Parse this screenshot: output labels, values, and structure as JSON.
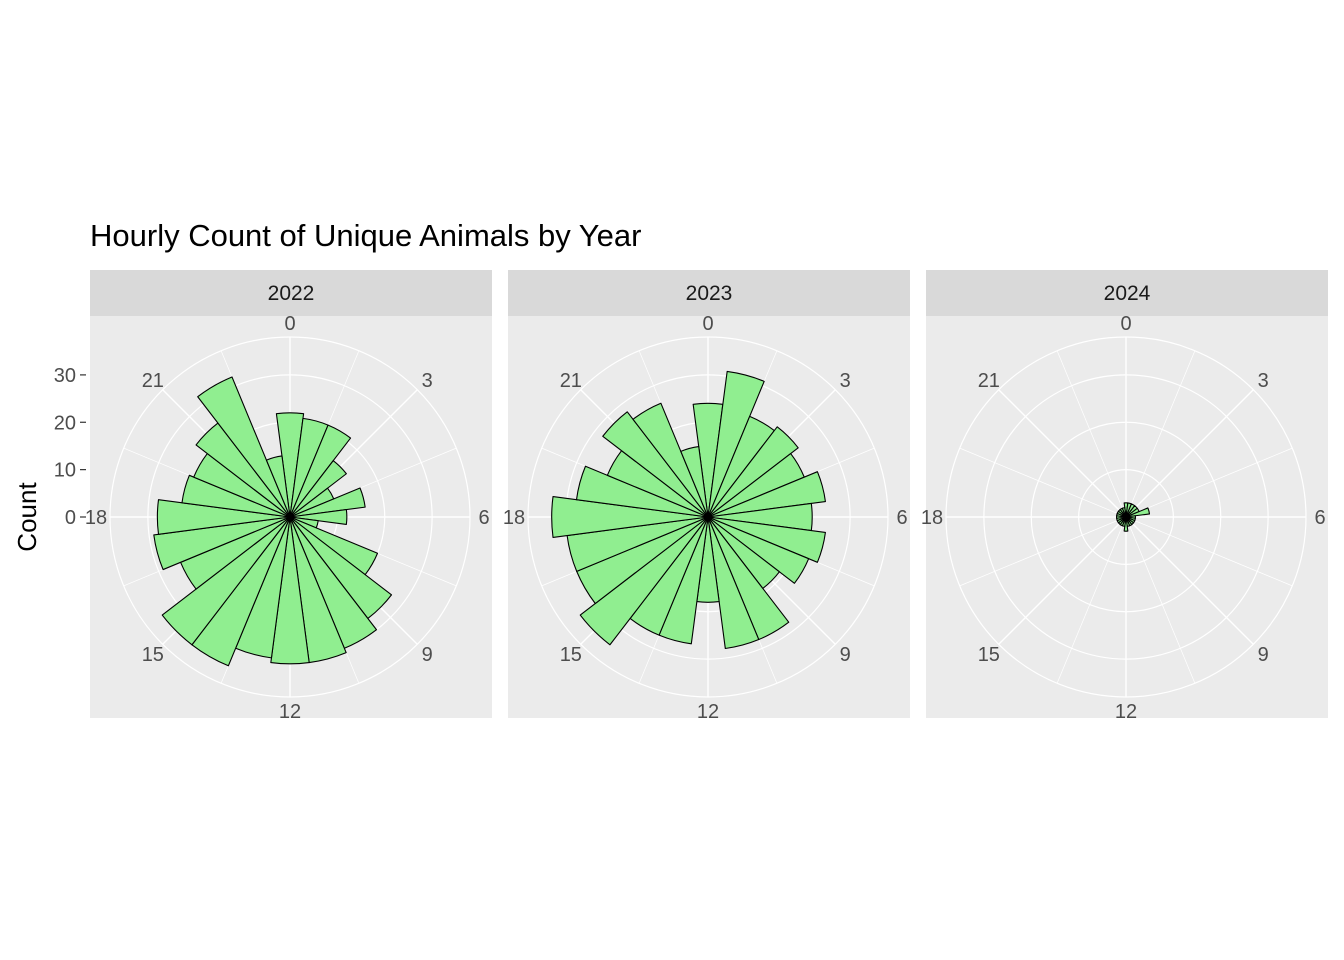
{
  "chart_data": {
    "type": "bar",
    "coord": "polar",
    "title": "Hourly Count of Unique Animals by Year",
    "xlabel": "",
    "ylabel": "Count",
    "y_ticks": [
      "0",
      "10",
      "20",
      "30"
    ],
    "x_tick_labels": [
      "0",
      "3",
      "6",
      "9",
      "12",
      "15",
      "18",
      "21"
    ],
    "x_tick_hours": [
      0,
      3,
      6,
      9,
      12,
      15,
      18,
      21
    ],
    "ylim": [
      0,
      38
    ],
    "bar_fill": "#90EE90",
    "bar_stroke": "#000000",
    "panel_background": "#EBEBEB",
    "strip_background": "#D9D9D9",
    "grid_color": "#FFFFFF",
    "panels": [
      {
        "label": "2022",
        "hours": [
          0,
          1,
          2,
          3,
          4,
          5,
          6,
          7,
          8,
          9,
          10,
          11,
          12,
          13,
          14,
          15,
          16,
          17,
          18,
          19,
          20,
          21,
          22,
          23
        ],
        "values": [
          22,
          21,
          21,
          15,
          10,
          16,
          12,
          6,
          20,
          27,
          30,
          31,
          31,
          30,
          34,
          34,
          25,
          29,
          28,
          23,
          22,
          25,
          32,
          13
        ]
      },
      {
        "label": "2023",
        "hours": [
          0,
          1,
          2,
          3,
          4,
          5,
          6,
          7,
          8,
          9,
          10,
          11,
          12,
          13,
          14,
          15,
          16,
          17,
          18,
          19,
          20,
          21,
          22,
          23
        ],
        "values": [
          24,
          31,
          23,
          24,
          22,
          25,
          22,
          25,
          23,
          19,
          28,
          28,
          18,
          27,
          27,
          34,
          30,
          30,
          33,
          28,
          23,
          28,
          26,
          15
        ]
      },
      {
        "label": "2024",
        "hours": [
          0,
          1,
          2,
          3,
          4,
          5,
          6,
          7,
          8,
          9,
          10,
          11,
          12,
          13,
          14,
          15,
          16,
          17,
          18,
          19,
          20,
          21,
          22,
          23
        ],
        "values": [
          3,
          3,
          3,
          3,
          3,
          5,
          2,
          2,
          2,
          2,
          2,
          2,
          3,
          2,
          2,
          2,
          2,
          2,
          2,
          2,
          2,
          2,
          2,
          2
        ]
      }
    ]
  }
}
